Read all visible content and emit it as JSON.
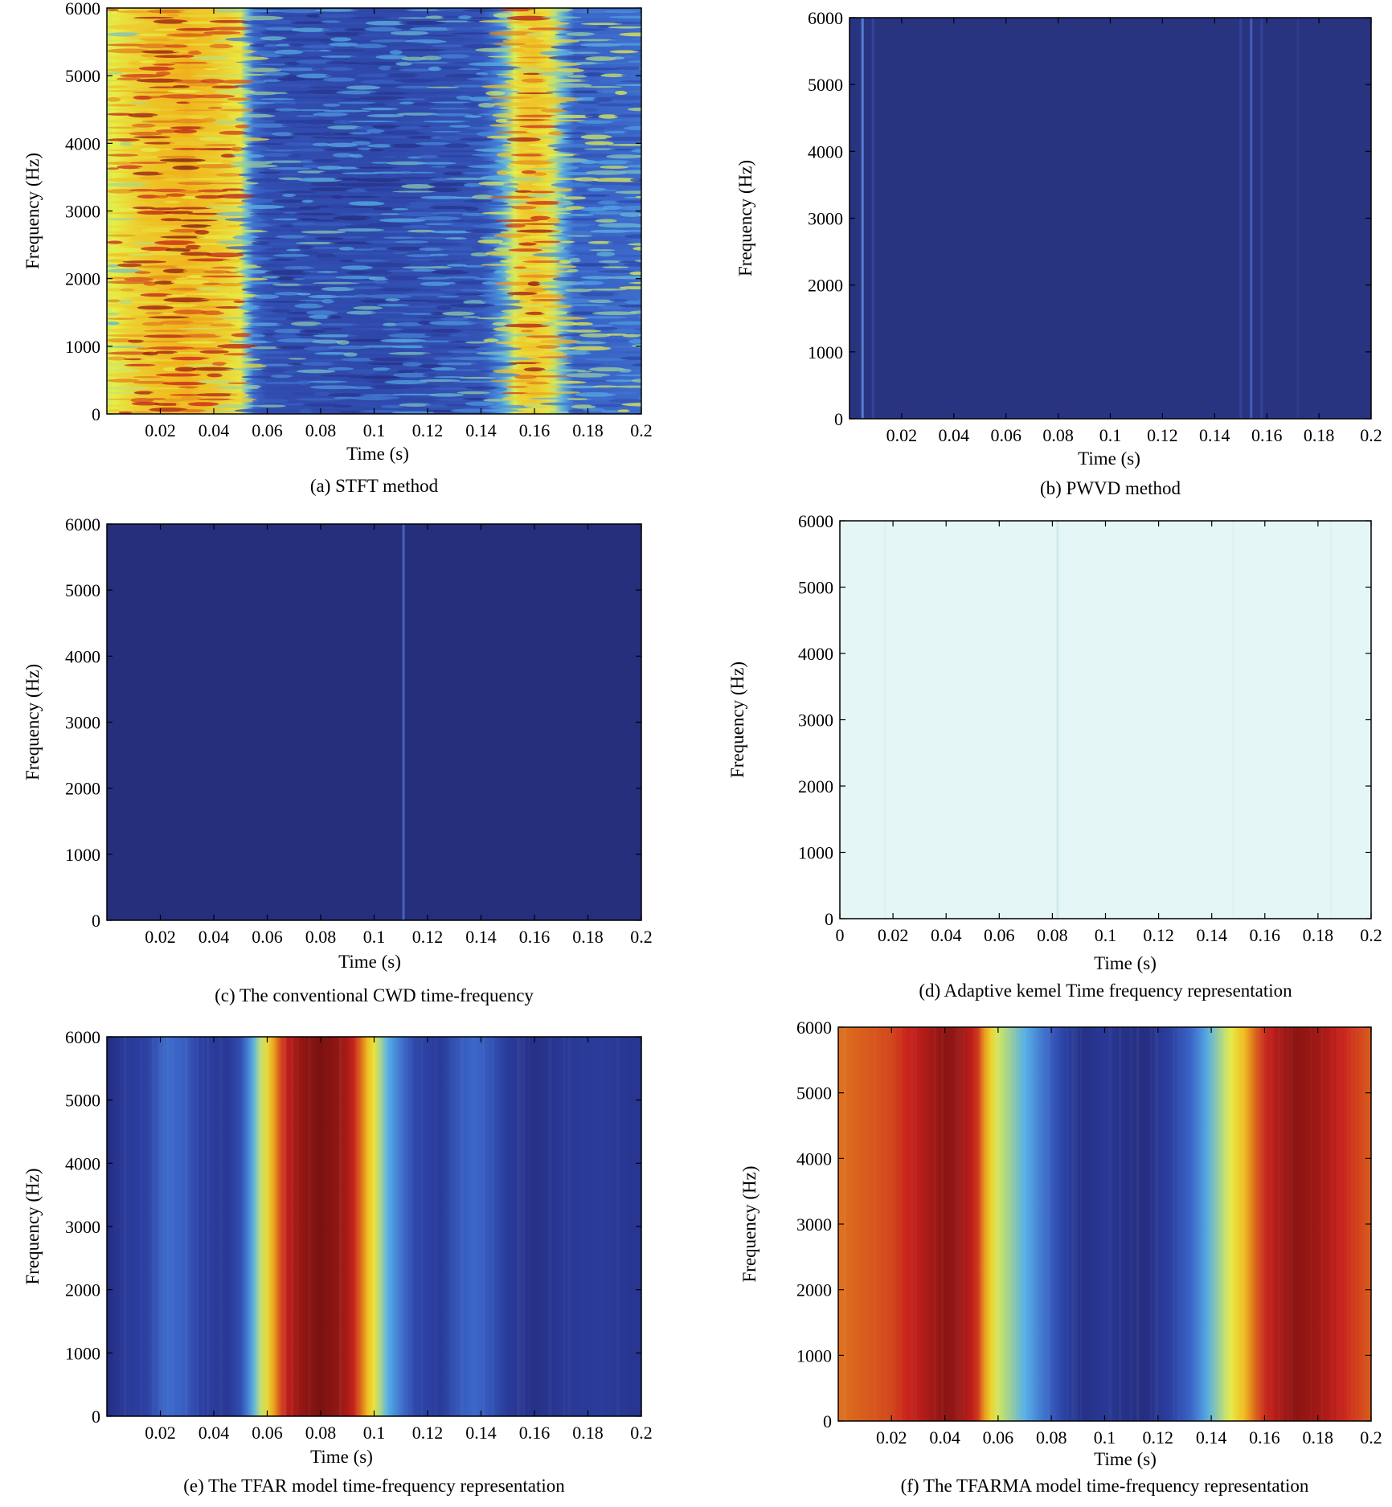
{
  "chart_data": [
    {
      "type": "heatmap",
      "caption": "(a) STFT method",
      "xlabel": "Time (s)",
      "ylabel": "Frequency (Hz)",
      "xlim": [
        0,
        0.2
      ],
      "ylim": [
        0,
        6000
      ],
      "xticks": [
        "0.02",
        "0.04",
        "0.06",
        "0.08",
        "0.1",
        "0.12",
        "0.14",
        "0.16",
        "0.18",
        "0.2"
      ],
      "yticks": [
        "0",
        "1000",
        "2000",
        "3000",
        "4000",
        "5000",
        "6000"
      ],
      "pattern": "stft",
      "intensity_profile": [
        [
          0,
          0.55
        ],
        [
          0.005,
          0.6
        ],
        [
          0.01,
          0.65
        ],
        [
          0.02,
          0.7
        ],
        [
          0.03,
          0.72
        ],
        [
          0.04,
          0.68
        ],
        [
          0.05,
          0.6
        ],
        [
          0.055,
          0.3
        ],
        [
          0.06,
          0.2
        ],
        [
          0.1,
          0.18
        ],
        [
          0.14,
          0.22
        ],
        [
          0.148,
          0.4
        ],
        [
          0.155,
          0.65
        ],
        [
          0.16,
          0.68
        ],
        [
          0.165,
          0.62
        ],
        [
          0.17,
          0.45
        ],
        [
          0.175,
          0.28
        ],
        [
          0.2,
          0.3
        ]
      ],
      "colorscale": [
        "#23297a",
        "#2b3fa0",
        "#3a64c7",
        "#57b0e6",
        "#e6f04a",
        "#f0b81f",
        "#c8201c",
        "#7a1210"
      ]
    },
    {
      "type": "heatmap",
      "caption": "(b) PWVD method",
      "xlabel": "Time (s)",
      "ylabel": "Frequency (Hz)",
      "xlim": [
        0,
        0.2
      ],
      "ylim": [
        0,
        6000
      ],
      "xticks": [
        "0.02",
        "0.04",
        "0.06",
        "0.08",
        "0.1",
        "0.12",
        "0.14",
        "0.16",
        "0.18",
        "0.2"
      ],
      "yticks": [
        "0",
        "1000",
        "2000",
        "3000",
        "4000",
        "5000",
        "6000"
      ],
      "pattern": "lines",
      "background": "#283480",
      "features": [
        {
          "x": 0.005,
          "color": "#5b86d8",
          "strength": 0.9
        },
        {
          "x": 0.009,
          "color": "#3b4fa8",
          "strength": 0.6
        },
        {
          "x": 0.15,
          "color": "#3b4fa8",
          "strength": 0.6
        },
        {
          "x": 0.154,
          "color": "#4a66c2",
          "strength": 0.8
        },
        {
          "x": 0.158,
          "color": "#3b4fa8",
          "strength": 0.5
        },
        {
          "x": 0.172,
          "color": "#34459a",
          "strength": 0.4
        }
      ]
    },
    {
      "type": "heatmap",
      "caption": "(c) The conventional CWD time-frequency",
      "xlabel": "Time (s)",
      "ylabel": "Frequency (Hz)",
      "xlim": [
        0,
        0.2
      ],
      "ylim": [
        0,
        6000
      ],
      "xticks": [
        "0.02",
        "0.04",
        "0.06",
        "0.08",
        "0.1",
        "0.12",
        "0.14",
        "0.16",
        "0.18",
        "0.2"
      ],
      "yticks": [
        "0",
        "1000",
        "2000",
        "3000",
        "4000",
        "5000",
        "6000"
      ],
      "pattern": "lines",
      "background": "#262f7c",
      "features": [
        {
          "x": 0.111,
          "color": "#4a66c2",
          "strength": 0.9
        }
      ]
    },
    {
      "type": "heatmap",
      "caption": "(d) Adaptive kemel Time frequency representation",
      "xlabel": "Time (s)",
      "ylabel": "Frequency (Hz)",
      "xlim": [
        0,
        0.2
      ],
      "ylim": [
        0,
        6000
      ],
      "xticks": [
        "0",
        "0.02",
        "0.04",
        "0.06",
        "0.08",
        "0.1",
        "0.12",
        "0.14",
        "0.16",
        "0.18",
        "0.2"
      ],
      "yticks": [
        "0",
        "1000",
        "2000",
        "3000",
        "4000",
        "5000",
        "6000"
      ],
      "pattern": "lines",
      "background": "#e5f6f6",
      "features": [
        {
          "x": 0.082,
          "color": "#c6e6e6",
          "strength": 0.7
        },
        {
          "x": 0.017,
          "color": "#d2ecec",
          "strength": 0.3
        },
        {
          "x": 0.148,
          "color": "#d2ecec",
          "strength": 0.3
        },
        {
          "x": 0.185,
          "color": "#d2ecec",
          "strength": 0.3
        }
      ]
    },
    {
      "type": "heatmap",
      "caption": "(e) The TFAR model time-frequency representation",
      "xlabel": "Time (s)",
      "ylabel": "Frequency (Hz)",
      "xlim": [
        0,
        0.2
      ],
      "ylim": [
        0,
        6000
      ],
      "xticks": [
        "0.02",
        "0.04",
        "0.06",
        "0.08",
        "0.1",
        "0.12",
        "0.14",
        "0.16",
        "0.18",
        "0.2"
      ],
      "yticks": [
        "0",
        "1000",
        "2000",
        "3000",
        "4000",
        "5000",
        "6000"
      ],
      "pattern": "vertical-bands",
      "intensity_profile": [
        [
          0,
          0.02
        ],
        [
          0.005,
          0.1
        ],
        [
          0.015,
          0.15
        ],
        [
          0.022,
          0.3
        ],
        [
          0.028,
          0.28
        ],
        [
          0.035,
          0.15
        ],
        [
          0.045,
          0.1
        ],
        [
          0.05,
          0.2
        ],
        [
          0.054,
          0.4
        ],
        [
          0.058,
          0.55
        ],
        [
          0.062,
          0.72
        ],
        [
          0.066,
          0.85
        ],
        [
          0.072,
          0.95
        ],
        [
          0.08,
          1.0
        ],
        [
          0.088,
          0.95
        ],
        [
          0.094,
          0.82
        ],
        [
          0.099,
          0.65
        ],
        [
          0.102,
          0.52
        ],
        [
          0.106,
          0.4
        ],
        [
          0.11,
          0.32
        ],
        [
          0.115,
          0.18
        ],
        [
          0.125,
          0.12
        ],
        [
          0.132,
          0.25
        ],
        [
          0.138,
          0.3
        ],
        [
          0.142,
          0.25
        ],
        [
          0.15,
          0.12
        ],
        [
          0.16,
          0.05
        ],
        [
          0.17,
          0.1
        ],
        [
          0.185,
          0.12
        ],
        [
          0.2,
          0.08
        ]
      ],
      "colorscale": [
        "#23297a",
        "#2b3fa0",
        "#3a64c7",
        "#57b0e6",
        "#e6f04a",
        "#f0b81f",
        "#c8201c",
        "#7a1210"
      ]
    },
    {
      "type": "heatmap",
      "caption": "(f) The TFARMA model time-frequency representation",
      "xlabel": "Time (s)",
      "ylabel": "Frequency (Hz)",
      "xlim": [
        0,
        0.2
      ],
      "ylim": [
        0,
        6000
      ],
      "xticks": [
        "0.02",
        "0.04",
        "0.06",
        "0.08",
        "0.1",
        "0.12",
        "0.14",
        "0.16",
        "0.18",
        "0.2"
      ],
      "yticks": [
        "0",
        "1000",
        "2000",
        "3000",
        "4000",
        "5000",
        "6000"
      ],
      "pattern": "vertical-bands",
      "intensity_profile": [
        [
          0,
          0.78
        ],
        [
          0.01,
          0.8
        ],
        [
          0.02,
          0.82
        ],
        [
          0.03,
          0.88
        ],
        [
          0.04,
          0.97
        ],
        [
          0.045,
          0.95
        ],
        [
          0.052,
          0.85
        ],
        [
          0.056,
          0.7
        ],
        [
          0.06,
          0.55
        ],
        [
          0.066,
          0.48
        ],
        [
          0.072,
          0.4
        ],
        [
          0.078,
          0.3
        ],
        [
          0.085,
          0.15
        ],
        [
          0.092,
          0.05
        ],
        [
          0.1,
          0.1
        ],
        [
          0.108,
          0.05
        ],
        [
          0.115,
          0.03
        ],
        [
          0.125,
          0.15
        ],
        [
          0.133,
          0.3
        ],
        [
          0.14,
          0.45
        ],
        [
          0.146,
          0.55
        ],
        [
          0.152,
          0.7
        ],
        [
          0.158,
          0.82
        ],
        [
          0.166,
          0.92
        ],
        [
          0.172,
          0.97
        ],
        [
          0.18,
          0.93
        ],
        [
          0.19,
          0.85
        ],
        [
          0.2,
          0.8
        ]
      ],
      "colorscale": [
        "#23297a",
        "#2b3fa0",
        "#3a64c7",
        "#57b0e6",
        "#e6f04a",
        "#f0b81f",
        "#c8201c",
        "#7a1210"
      ]
    }
  ]
}
